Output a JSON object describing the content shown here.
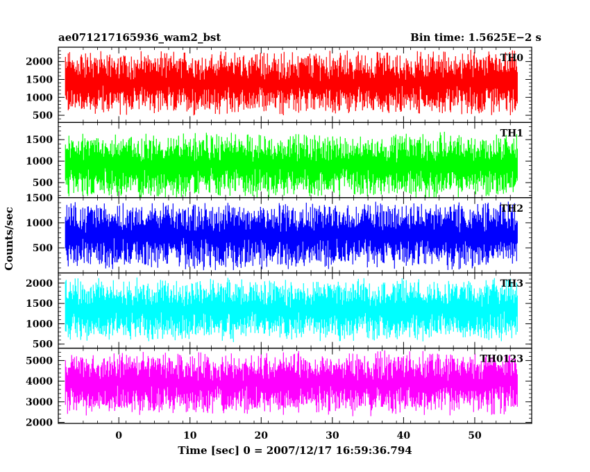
{
  "chart_data": {
    "type": "line",
    "title_left": "ae071217165936_wam2_bst",
    "title_right": "Bin time: 1.5625E−2 s",
    "xlabel": "Time [sec] 0 = 2007/12/17 16:59:36.794",
    "ylabel": "Counts/sec",
    "xlim": [
      -8.5,
      58
    ],
    "xticks": [
      0,
      10,
      20,
      30,
      40,
      50
    ],
    "grid": false,
    "panels": [
      {
        "name": "TH0",
        "color": "#ff0000",
        "ylim": [
          300,
          2400
        ],
        "yticks": [
          500,
          1000,
          1500,
          2000
        ],
        "mean": 1400,
        "spread": 1000,
        "data_xrange": [
          -7.5,
          56
        ]
      },
      {
        "name": "TH1",
        "color": "#00ff00",
        "ylim": [
          150,
          1900
        ],
        "yticks": [
          500,
          1000,
          1500
        ],
        "mean": 900,
        "spread": 850,
        "data_xrange": [
          -7.5,
          56
        ]
      },
      {
        "name": "TH2",
        "color": "#0000ff",
        "ylim": [
          0,
          1500
        ],
        "yticks": [
          500,
          1000,
          1500
        ],
        "mean": 750,
        "spread": 750,
        "data_xrange": [
          -7.5,
          56
        ]
      },
      {
        "name": "TH3",
        "color": "#00ffff",
        "ylim": [
          400,
          2250
        ],
        "yticks": [
          500,
          1000,
          1500,
          2000
        ],
        "mean": 1350,
        "spread": 850,
        "data_xrange": [
          -7.5,
          56
        ]
      },
      {
        "name": "TH0123",
        "color": "#ff00ff",
        "ylim": [
          1950,
          5600
        ],
        "yticks": [
          2000,
          3000,
          4000,
          5000
        ],
        "mean": 3900,
        "spread": 1700,
        "data_xrange": [
          -7.5,
          56
        ]
      }
    ]
  }
}
